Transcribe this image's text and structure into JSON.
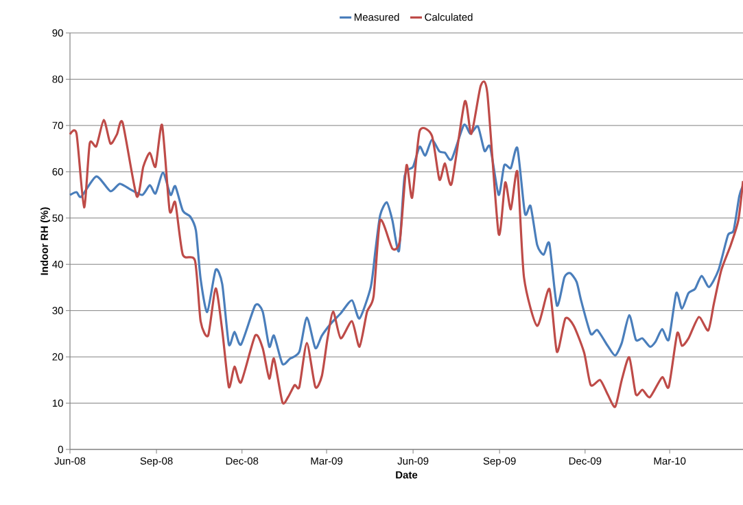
{
  "chart_data": {
    "type": "line",
    "xlabel": "Date",
    "ylabel": "Indoor RH (%)",
    "xlim": [
      "2008-06-01",
      "2010-05-18"
    ],
    "xticks": [
      {
        "value": "2008-06-01",
        "label": "Jun-08"
      },
      {
        "value": "2008-09-01",
        "label": "Sep-08"
      },
      {
        "value": "2008-12-01",
        "label": "Dec-08"
      },
      {
        "value": "2009-03-01",
        "label": "Mar-09"
      },
      {
        "value": "2009-06-01",
        "label": "Jun-09"
      },
      {
        "value": "2009-09-01",
        "label": "Sep-09"
      },
      {
        "value": "2009-12-01",
        "label": "Dec-09"
      },
      {
        "value": "2010-03-01",
        "label": "Mar-10"
      }
    ],
    "ylim": [
      0,
      90
    ],
    "yticks": [
      0,
      10,
      20,
      30,
      40,
      50,
      60,
      70,
      80,
      90
    ],
    "grid": "y",
    "legend": "top",
    "marker": "none",
    "line_style": "solid",
    "series": [
      {
        "name": "Measured",
        "color": "#4a7ebb",
        "x": [
          "2008-06-01",
          "2008-06-08",
          "2008-06-13",
          "2008-06-29",
          "2008-07-14",
          "2008-07-24",
          "2008-08-05",
          "2008-08-17",
          "2008-08-25",
          "2008-08-31",
          "2008-09-08",
          "2008-09-16",
          "2008-09-21",
          "2008-09-29",
          "2008-10-07",
          "2008-10-13",
          "2008-10-18",
          "2008-10-25",
          "2008-11-03",
          "2008-11-10",
          "2008-11-17",
          "2008-11-23",
          "2008-11-30",
          "2008-12-15",
          "2008-12-23",
          "2008-12-30",
          "2009-01-04",
          "2009-01-13",
          "2009-01-21",
          "2009-01-31",
          "2009-02-08",
          "2009-02-17",
          "2009-02-24",
          "2009-03-06",
          "2009-03-16",
          "2009-03-28",
          "2009-04-05",
          "2009-04-17",
          "2009-04-22",
          "2009-04-27",
          "2009-05-04",
          "2009-05-10",
          "2009-05-17",
          "2009-05-23",
          "2009-06-01",
          "2009-06-08",
          "2009-06-14",
          "2009-06-21",
          "2009-06-29",
          "2009-07-05",
          "2009-07-12",
          "2009-07-25",
          "2009-08-01",
          "2009-08-09",
          "2009-08-16",
          "2009-08-22",
          "2009-08-31",
          "2009-09-06",
          "2009-09-13",
          "2009-09-20",
          "2009-09-28",
          "2009-10-04",
          "2009-10-11",
          "2009-10-18",
          "2009-10-24",
          "2009-11-01",
          "2009-11-09",
          "2009-11-15",
          "2009-11-22",
          "2009-11-27",
          "2009-12-07",
          "2009-12-14",
          "2009-12-25",
          "2010-01-02",
          "2010-01-09",
          "2010-01-17",
          "2010-01-24",
          "2010-01-31",
          "2010-02-08",
          "2010-02-14",
          "2010-02-21",
          "2010-02-28",
          "2010-03-08",
          "2010-03-14",
          "2010-03-21",
          "2010-03-28",
          "2010-04-04",
          "2010-04-12",
          "2010-04-22",
          "2010-05-02",
          "2010-05-08",
          "2010-05-14",
          "2010-05-18"
        ],
        "values": [
          55,
          55.6,
          54.6,
          59,
          55.8,
          57.4,
          56.1,
          55,
          57.1,
          55.3,
          59.8,
          55,
          56.9,
          51.6,
          50.3,
          47.3,
          36.8,
          29.7,
          38.8,
          35.7,
          22.7,
          25.4,
          22.7,
          31.1,
          29.8,
          22.2,
          24.6,
          18.5,
          19.6,
          21.1,
          28.5,
          21.9,
          24.6,
          27.3,
          29.4,
          32.2,
          28.3,
          35.1,
          43.1,
          50.6,
          53.4,
          49.5,
          42.9,
          59,
          61.1,
          65.4,
          63.5,
          66.9,
          64.4,
          64.1,
          62.7,
          70.1,
          68.2,
          69.8,
          64.5,
          65.4,
          55,
          61.4,
          60.8,
          65.1,
          51,
          52.6,
          44.2,
          42.1,
          44.5,
          31.1,
          37.2,
          38.1,
          36.2,
          32,
          25,
          25.8,
          22.4,
          20.3,
          23,
          29,
          23.7,
          24,
          22.2,
          23.3,
          26,
          23.7,
          33.8,
          30.4,
          33.8,
          34.7,
          37.5,
          35.1,
          38.8,
          46.3,
          47.3,
          54.7,
          57
        ]
      },
      {
        "name": "Calculated",
        "color": "#be4b48",
        "x": [
          "2008-06-01",
          "2008-06-08",
          "2008-06-16",
          "2008-06-22",
          "2008-06-29",
          "2008-07-07",
          "2008-07-14",
          "2008-07-21",
          "2008-07-27",
          "2008-08-11",
          "2008-08-18",
          "2008-08-25",
          "2008-08-31",
          "2008-09-07",
          "2008-09-15",
          "2008-09-21",
          "2008-09-29",
          "2008-10-12",
          "2008-10-18",
          "2008-10-26",
          "2008-11-03",
          "2008-11-10",
          "2008-11-17",
          "2008-11-23",
          "2008-11-30",
          "2008-12-15",
          "2008-12-23",
          "2008-12-30",
          "2009-01-04",
          "2009-01-13",
          "2009-01-19",
          "2009-01-26",
          "2009-01-31",
          "2009-02-08",
          "2009-02-17",
          "2009-02-24",
          "2009-03-02",
          "2009-03-08",
          "2009-03-16",
          "2009-03-28",
          "2009-04-05",
          "2009-04-13",
          "2009-04-20",
          "2009-04-27",
          "2009-05-10",
          "2009-05-18",
          "2009-05-25",
          "2009-05-31",
          "2009-06-08",
          "2009-06-21",
          "2009-06-29",
          "2009-07-05",
          "2009-07-12",
          "2009-07-26",
          "2009-08-02",
          "2009-08-12",
          "2009-08-19",
          "2009-08-31",
          "2009-09-07",
          "2009-09-13",
          "2009-09-20",
          "2009-09-27",
          "2009-10-11",
          "2009-10-24",
          "2009-11-01",
          "2009-11-10",
          "2009-11-19",
          "2009-11-30",
          "2009-12-07",
          "2009-12-17",
          "2009-12-25",
          "2010-01-02",
          "2010-01-09",
          "2010-01-17",
          "2010-01-24",
          "2010-01-31",
          "2010-02-08",
          "2010-02-21",
          "2010-02-28",
          "2010-03-09",
          "2010-03-14",
          "2010-03-21",
          "2010-04-01",
          "2010-04-11",
          "2010-04-17",
          "2010-04-25",
          "2010-05-05",
          "2010-05-13",
          "2010-05-18"
        ],
        "values": [
          68.1,
          68.2,
          52.3,
          66.1,
          65.5,
          71.2,
          66.1,
          68.1,
          70.6,
          54.7,
          61.1,
          64.1,
          61.1,
          70.1,
          51.6,
          53.4,
          42.1,
          40.8,
          27.7,
          24.6,
          34.8,
          25.7,
          13.5,
          17.9,
          14.5,
          24.6,
          21.9,
          15.3,
          19.6,
          10.2,
          11.3,
          13.9,
          13.5,
          23,
          13.5,
          15.9,
          24,
          29.8,
          24,
          27.7,
          22.2,
          29.7,
          33.1,
          49.5,
          43.4,
          45.2,
          61.4,
          54.4,
          68.8,
          67.8,
          58.3,
          61.8,
          57.4,
          75.2,
          68.2,
          78.6,
          77,
          46.6,
          57.7,
          51.9,
          60,
          37.2,
          26.7,
          34.7,
          21.1,
          28.3,
          26.7,
          20.9,
          13.9,
          15,
          11.9,
          9.2,
          15,
          19.9,
          11.9,
          12.9,
          11.3,
          15.6,
          13.5,
          25.1,
          22.4,
          24,
          28.6,
          25.7,
          31.5,
          38.8,
          44.2,
          49.5,
          58
        ]
      }
    ]
  }
}
